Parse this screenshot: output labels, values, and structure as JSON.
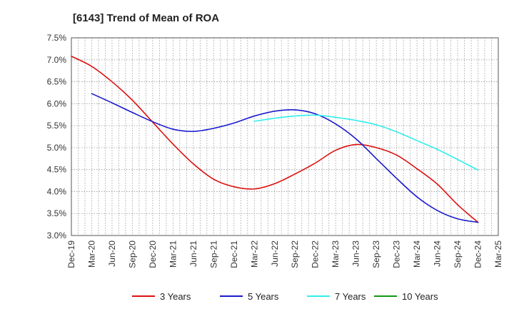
{
  "chart_data": {
    "type": "line",
    "title": "[6143]  Trend of Mean of ROA",
    "xlabel": "",
    "ylabel": "",
    "x": [
      "Dec-19",
      "Mar-20",
      "Jun-20",
      "Sep-20",
      "Dec-20",
      "Mar-21",
      "Jun-21",
      "Sep-21",
      "Dec-21",
      "Mar-22",
      "Jun-22",
      "Sep-22",
      "Dec-22",
      "Mar-23",
      "Jun-23",
      "Sep-23",
      "Dec-23",
      "Mar-24",
      "Jun-24",
      "Sep-24",
      "Dec-24",
      "Mar-25"
    ],
    "ylim": [
      3.0,
      7.5
    ],
    "yticks": [
      3.0,
      3.5,
      4.0,
      4.5,
      5.0,
      5.5,
      6.0,
      6.5,
      7.0,
      7.5
    ],
    "ytick_labels": [
      "3.0%",
      "3.5%",
      "4.0%",
      "4.5%",
      "5.0%",
      "5.5%",
      "6.0%",
      "6.5%",
      "7.0%",
      "7.5%"
    ],
    "grid": true,
    "legend_position": "bottom",
    "series": [
      {
        "name": "3 Years",
        "color": "#dd1111",
        "values": [
          7.08,
          6.85,
          6.5,
          6.08,
          5.58,
          5.08,
          4.63,
          4.28,
          4.11,
          4.06,
          4.18,
          4.4,
          4.65,
          4.94,
          5.07,
          5.0,
          4.83,
          4.52,
          4.17,
          3.7,
          3.3,
          null
        ]
      },
      {
        "name": "5 Years",
        "color": "#1a1acc",
        "values": [
          null,
          6.23,
          6.02,
          5.8,
          5.59,
          5.42,
          5.37,
          5.44,
          5.56,
          5.72,
          5.83,
          5.86,
          5.77,
          5.54,
          5.2,
          4.75,
          4.3,
          3.88,
          3.57,
          3.38,
          3.3,
          null
        ]
      },
      {
        "name": "7 Years",
        "color": "#33eeee",
        "values": [
          null,
          null,
          null,
          null,
          null,
          null,
          null,
          null,
          null,
          5.6,
          5.67,
          5.72,
          5.74,
          5.69,
          5.62,
          5.52,
          5.36,
          5.16,
          4.96,
          4.73,
          4.49,
          null
        ]
      },
      {
        "name": "10 Years",
        "color": "#119911",
        "values": [
          null,
          null,
          null,
          null,
          null,
          null,
          null,
          null,
          null,
          null,
          null,
          null,
          null,
          null,
          null,
          null,
          null,
          null,
          null,
          null,
          null,
          null
        ]
      }
    ]
  }
}
